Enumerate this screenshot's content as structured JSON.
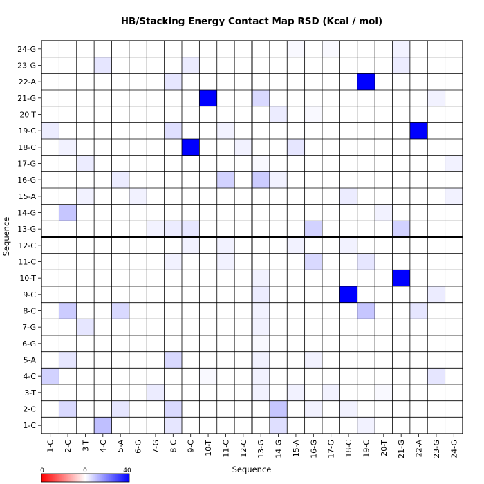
{
  "chart_data": {
    "type": "heatmap",
    "title": "HB/Stacking Energy Contact Map RSD (Kcal / mol)",
    "xlabel": "Sequence",
    "ylabel": "Sequence",
    "labels": [
      "1-C",
      "2-C",
      "3-T",
      "4-C",
      "5-A",
      "6-G",
      "7-G",
      "8-C",
      "9-C",
      "10-T",
      "11-C",
      "12-C",
      "13-G",
      "14-G",
      "15-A",
      "16-G",
      "17-G",
      "18-C",
      "19-C",
      "20-T",
      "21-G",
      "22-A",
      "23-G",
      "24-G"
    ],
    "colorbar": {
      "min": 0,
      "max": 40,
      "ticks": [
        "0",
        "0",
        "40"
      ],
      "low_color": "#ff0000",
      "mid_color": "#ffffff",
      "high_color": "#0000ff"
    },
    "cells": [
      [
        1,
        4,
        10
      ],
      [
        1,
        8,
        4
      ],
      [
        1,
        14,
        5
      ],
      [
        1,
        19,
        2
      ],
      [
        2,
        2,
        6
      ],
      [
        2,
        5,
        4
      ],
      [
        2,
        8,
        6
      ],
      [
        2,
        14,
        9
      ],
      [
        2,
        16,
        2
      ],
      [
        2,
        18,
        2
      ],
      [
        3,
        7,
        3
      ],
      [
        3,
        13,
        2
      ],
      [
        3,
        15,
        2
      ],
      [
        3,
        17,
        2
      ],
      [
        3,
        20,
        1
      ],
      [
        4,
        1,
        7
      ],
      [
        4,
        10,
        1
      ],
      [
        4,
        13,
        2
      ],
      [
        4,
        23,
        4
      ],
      [
        5,
        2,
        4
      ],
      [
        5,
        8,
        6
      ],
      [
        5,
        13,
        2
      ],
      [
        5,
        16,
        2
      ],
      [
        6,
        13,
        1
      ],
      [
        7,
        3,
        4
      ],
      [
        7,
        13,
        2
      ],
      [
        8,
        2,
        8
      ],
      [
        8,
        5,
        6
      ],
      [
        8,
        13,
        2
      ],
      [
        8,
        19,
        9
      ],
      [
        8,
        22,
        4
      ],
      [
        9,
        13,
        3
      ],
      [
        9,
        18,
        40
      ],
      [
        9,
        23,
        3
      ],
      [
        10,
        13,
        2
      ],
      [
        10,
        21,
        40
      ],
      [
        11,
        8,
        2
      ],
      [
        11,
        11,
        2
      ],
      [
        11,
        16,
        6
      ],
      [
        11,
        19,
        4
      ],
      [
        12,
        9,
        2
      ],
      [
        12,
        11,
        2
      ],
      [
        12,
        15,
        2
      ],
      [
        12,
        18,
        2
      ],
      [
        13,
        7,
        2
      ],
      [
        13,
        8,
        3
      ],
      [
        13,
        9,
        4
      ],
      [
        13,
        16,
        7
      ],
      [
        13,
        21,
        7
      ],
      [
        14,
        2,
        9
      ],
      [
        14,
        20,
        2
      ],
      [
        15,
        3,
        2
      ],
      [
        15,
        6,
        2
      ],
      [
        15,
        18,
        3
      ],
      [
        15,
        24,
        2
      ],
      [
        16,
        5,
        3
      ],
      [
        16,
        11,
        7
      ],
      [
        16,
        13,
        8
      ],
      [
        16,
        14,
        2
      ],
      [
        17,
        3,
        3
      ],
      [
        17,
        13,
        1
      ],
      [
        17,
        24,
        2
      ],
      [
        18,
        2,
        2
      ],
      [
        18,
        9,
        40
      ],
      [
        18,
        12,
        2
      ],
      [
        18,
        15,
        4
      ],
      [
        19,
        1,
        3
      ],
      [
        19,
        8,
        5
      ],
      [
        19,
        11,
        2
      ],
      [
        19,
        22,
        40
      ],
      [
        20,
        14,
        3
      ],
      [
        20,
        16,
        1
      ],
      [
        21,
        10,
        40
      ],
      [
        21,
        13,
        6
      ],
      [
        21,
        23,
        2
      ],
      [
        22,
        8,
        4
      ],
      [
        22,
        19,
        40
      ],
      [
        23,
        4,
        4
      ],
      [
        23,
        9,
        3
      ],
      [
        23,
        21,
        3
      ],
      [
        24,
        15,
        1
      ],
      [
        24,
        17,
        1
      ],
      [
        24,
        21,
        2
      ]
    ]
  }
}
